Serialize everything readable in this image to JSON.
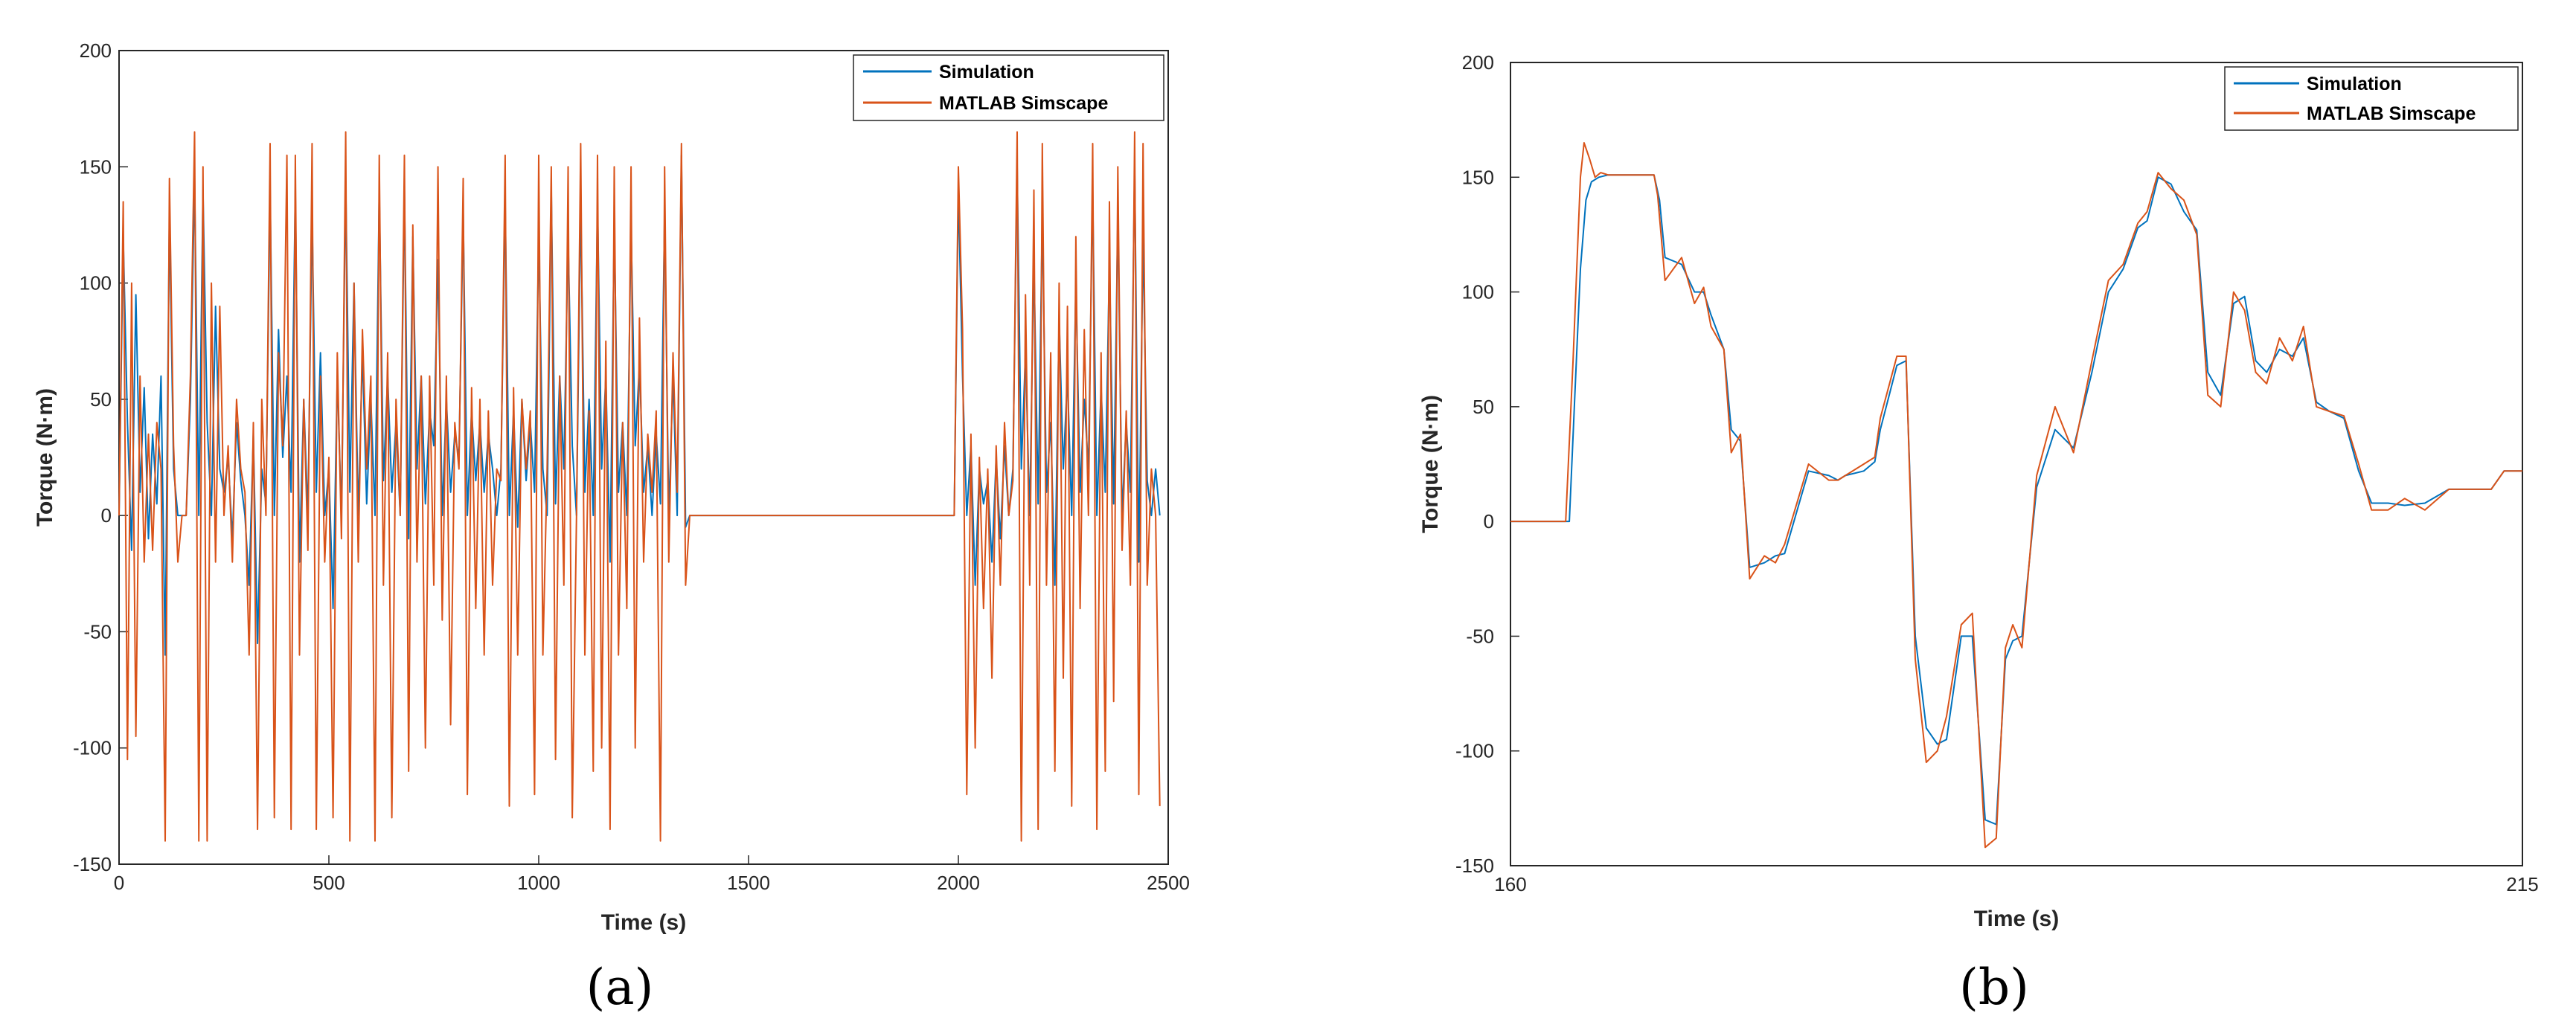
{
  "colors": {
    "simulation": "#0072BD",
    "simscape": "#D95319",
    "axis": "#262626"
  },
  "chart_data": [
    {
      "type": "line",
      "panel_label": "(a)",
      "xlabel": "Time (s)",
      "ylabel": "Torque (N·m)",
      "xlim": [
        0,
        2500
      ],
      "ylim": [
        -150,
        200
      ],
      "xticks": [
        0,
        500,
        1000,
        1500,
        2000,
        2500
      ],
      "yticks": [
        -150,
        -100,
        -50,
        0,
        50,
        100,
        150,
        200
      ],
      "legend_position": "top-right",
      "series": [
        {
          "name": "Simulation",
          "x": [
            0,
            10,
            20,
            30,
            40,
            50,
            60,
            70,
            80,
            90,
            100,
            110,
            120,
            130,
            140,
            150,
            160,
            170,
            180,
            190,
            200,
            210,
            220,
            230,
            240,
            250,
            260,
            270,
            280,
            290,
            300,
            310,
            320,
            330,
            340,
            350,
            360,
            370,
            380,
            390,
            400,
            410,
            420,
            430,
            440,
            450,
            460,
            470,
            480,
            490,
            500,
            510,
            520,
            530,
            540,
            550,
            560,
            570,
            580,
            590,
            600,
            610,
            620,
            630,
            640,
            650,
            660,
            670,
            680,
            690,
            700,
            710,
            720,
            730,
            740,
            750,
            760,
            770,
            780,
            790,
            800,
            810,
            820,
            830,
            840,
            850,
            860,
            870,
            880,
            890,
            900,
            910,
            920,
            930,
            940,
            950,
            960,
            970,
            980,
            990,
            1000,
            1010,
            1020,
            1030,
            1040,
            1050,
            1060,
            1070,
            1080,
            1090,
            1100,
            1110,
            1120,
            1130,
            1140,
            1150,
            1160,
            1170,
            1180,
            1190,
            1200,
            1210,
            1220,
            1230,
            1240,
            1250,
            1260,
            1270,
            1280,
            1290,
            1300,
            1310,
            1320,
            1330,
            1340,
            1350,
            1360,
            1370,
            1500,
            1990,
            2000,
            2010,
            2020,
            2030,
            2040,
            2050,
            2060,
            2070,
            2080,
            2090,
            2100,
            2110,
            2120,
            2130,
            2140,
            2150,
            2160,
            2170,
            2180,
            2190,
            2200,
            2210,
            2220,
            2230,
            2240,
            2250,
            2260,
            2270,
            2280,
            2290,
            2300,
            2310,
            2320,
            2330,
            2340,
            2350,
            2360,
            2370,
            2380,
            2390,
            2400,
            2410,
            2420,
            2430,
            2440,
            2450,
            2460,
            2470,
            2480
          ],
          "values": [
            0,
            120,
            40,
            -15,
            95,
            10,
            55,
            -10,
            35,
            5,
            60,
            -60,
            130,
            20,
            0,
            0,
            0,
            50,
            145,
            0,
            140,
            40,
            0,
            90,
            20,
            10,
            25,
            -10,
            40,
            15,
            0,
            -30,
            35,
            -55,
            20,
            5,
            140,
            0,
            80,
            25,
            60,
            10,
            140,
            -20,
            50,
            0,
            130,
            10,
            70,
            0,
            20,
            -40,
            60,
            0,
            145,
            10,
            100,
            0,
            70,
            5,
            50,
            0,
            140,
            15,
            60,
            10,
            40,
            0,
            140,
            -10,
            120,
            20,
            60,
            5,
            45,
            30,
            110,
            0,
            50,
            10,
            35,
            25,
            130,
            0,
            45,
            15,
            40,
            10,
            35,
            20,
            0,
            20,
            135,
            0,
            45,
            -5,
            50,
            15,
            40,
            10,
            120,
            20,
            0,
            140,
            5,
            60,
            20,
            120,
            30,
            0,
            135,
            10,
            50,
            0,
            135,
            20,
            60,
            -20,
            125,
            10,
            40,
            0,
            125,
            30,
            65,
            10,
            30,
            0,
            35,
            5,
            130,
            0,
            60,
            0,
            155,
            -5,
            0,
            0,
            0,
            0,
            140,
            60,
            0,
            30,
            -30,
            20,
            5,
            15,
            -20,
            25,
            -10,
            30,
            0,
            20,
            150,
            20,
            70,
            0,
            110,
            5,
            130,
            10,
            40,
            -30,
            85,
            20,
            60,
            0,
            100,
            10,
            50,
            20,
            140,
            0,
            55,
            10,
            110,
            5,
            130,
            0,
            40,
            10,
            150,
            -20,
            120,
            15,
            0,
            20,
            0
          ]
        },
        {
          "name": "MATLAB Simscape",
          "x": [
            0,
            10,
            20,
            30,
            40,
            50,
            60,
            70,
            80,
            90,
            100,
            110,
            120,
            130,
            140,
            150,
            160,
            170,
            180,
            190,
            200,
            210,
            220,
            230,
            240,
            250,
            260,
            270,
            280,
            290,
            300,
            310,
            320,
            330,
            340,
            350,
            360,
            370,
            380,
            390,
            400,
            410,
            420,
            430,
            440,
            450,
            460,
            470,
            480,
            490,
            500,
            510,
            520,
            530,
            540,
            550,
            560,
            570,
            580,
            590,
            600,
            610,
            620,
            630,
            640,
            650,
            660,
            670,
            680,
            690,
            700,
            710,
            720,
            730,
            740,
            750,
            760,
            770,
            780,
            790,
            800,
            810,
            820,
            830,
            840,
            850,
            860,
            870,
            880,
            890,
            900,
            910,
            920,
            930,
            940,
            950,
            960,
            970,
            980,
            990,
            1000,
            1010,
            1020,
            1030,
            1040,
            1050,
            1060,
            1070,
            1080,
            1090,
            1100,
            1110,
            1120,
            1130,
            1140,
            1150,
            1160,
            1170,
            1180,
            1190,
            1200,
            1210,
            1220,
            1230,
            1240,
            1250,
            1260,
            1270,
            1280,
            1290,
            1300,
            1310,
            1320,
            1330,
            1340,
            1350,
            1360,
            1370,
            1500,
            1990,
            2000,
            2010,
            2020,
            2030,
            2040,
            2050,
            2060,
            2070,
            2080,
            2090,
            2100,
            2110,
            2120,
            2130,
            2140,
            2150,
            2160,
            2170,
            2180,
            2190,
            2200,
            2210,
            2220,
            2230,
            2240,
            2250,
            2260,
            2270,
            2280,
            2290,
            2300,
            2310,
            2320,
            2330,
            2340,
            2350,
            2360,
            2370,
            2380,
            2390,
            2400,
            2410,
            2420,
            2430,
            2440,
            2450,
            2460,
            2470,
            2480
          ],
          "values": [
            0,
            135,
            -105,
            100,
            -95,
            60,
            -20,
            35,
            -15,
            40,
            20,
            -140,
            145,
            30,
            -20,
            0,
            0,
            60,
            165,
            -140,
            150,
            -140,
            100,
            -20,
            90,
            0,
            30,
            -20,
            50,
            20,
            10,
            -60,
            40,
            -135,
            50,
            0,
            160,
            -130,
            70,
            30,
            155,
            -135,
            155,
            -60,
            50,
            -15,
            160,
            -135,
            60,
            -20,
            25,
            -130,
            70,
            -10,
            165,
            -140,
            100,
            -20,
            80,
            20,
            60,
            -140,
            155,
            -30,
            70,
            -130,
            50,
            0,
            155,
            -110,
            125,
            -20,
            60,
            -100,
            60,
            -30,
            150,
            -45,
            60,
            -90,
            40,
            20,
            145,
            -120,
            55,
            -40,
            50,
            -60,
            45,
            -30,
            20,
            15,
            155,
            -125,
            55,
            -60,
            50,
            20,
            45,
            -120,
            155,
            -60,
            20,
            150,
            -105,
            60,
            -30,
            150,
            -130,
            0,
            160,
            -60,
            45,
            -110,
            155,
            -100,
            75,
            -135,
            150,
            -60,
            40,
            -40,
            150,
            -100,
            85,
            -20,
            35,
            10,
            45,
            -140,
            150,
            -20,
            70,
            10,
            160,
            -30,
            0,
            0,
            0,
            0,
            150,
            80,
            -120,
            35,
            -100,
            25,
            -40,
            20,
            -70,
            30,
            -30,
            40,
            0,
            15,
            165,
            -140,
            95,
            -30,
            140,
            -135,
            160,
            -30,
            70,
            -110,
            100,
            -70,
            90,
            -125,
            120,
            -40,
            80,
            0,
            160,
            -135,
            70,
            -110,
            135,
            -80,
            150,
            -15,
            45,
            -30,
            165,
            -120,
            160,
            -30,
            20,
            0,
            -125
          ]
        }
      ]
    },
    {
      "type": "line",
      "panel_label": "(b)",
      "xlabel": "Time (s)",
      "ylabel": "Torque (N·m)",
      "xlim": [
        160,
        215
      ],
      "ylim": [
        -150,
        200
      ],
      "xticks": [
        160,
        215
      ],
      "yticks": [
        -150,
        -100,
        -50,
        0,
        50,
        100,
        150,
        200
      ],
      "legend_position": "top-right",
      "series": [
        {
          "name": "Simulation",
          "x": [
            160,
            163.2,
            163.5,
            163.8,
            164.1,
            164.4,
            164.8,
            165.3,
            166.5,
            167.8,
            168.1,
            168.4,
            169.3,
            170.0,
            170.5,
            170.9,
            171.6,
            172.0,
            172.5,
            173.0,
            173.8,
            174.4,
            174.9,
            176.2,
            177.3,
            177.8,
            178.2,
            179.2,
            179.8,
            180.1,
            181.0,
            181.5,
            182.0,
            182.6,
            183.2,
            183.7,
            184.5,
            185.1,
            185.8,
            186.4,
            186.9,
            187.3,
            187.8,
            188.6,
            189.6,
            190.6,
            191.6,
            192.5,
            193.3,
            194.1,
            194.6,
            195.2,
            195.9,
            196.6,
            197.3,
            197.9,
            198.6,
            199.3,
            199.9,
            200.5,
            201.1,
            201.8,
            202.5,
            203.1,
            203.8,
            204.5,
            205.3,
            206.1,
            206.8,
            207.7,
            208.6,
            209.7,
            211.0,
            212.9,
            213.3,
            214.0,
            215.0
          ],
          "values": [
            0,
            0,
            55,
            110,
            140,
            148,
            150,
            151,
            151,
            151,
            140,
            115,
            112,
            100,
            100,
            90,
            75,
            40,
            35,
            -20,
            -18,
            -15,
            -14,
            22,
            20,
            18,
            20,
            22,
            26,
            40,
            68,
            70,
            -50,
            -90,
            -97,
            -95,
            -50,
            -50,
            -130,
            -132,
            -60,
            -52,
            -50,
            15,
            40,
            32,
            65,
            100,
            110,
            128,
            131,
            150,
            147,
            135,
            127,
            65,
            55,
            95,
            98,
            70,
            65,
            75,
            72,
            80,
            52,
            48,
            45,
            22,
            8,
            8,
            7,
            8,
            14,
            14,
            14,
            22,
            22
          ]
        },
        {
          "name": "MATLAB Simscape",
          "x": [
            160,
            163.0,
            163.4,
            163.8,
            164.0,
            164.3,
            164.6,
            164.9,
            165.3,
            166.5,
            167.8,
            168.0,
            168.4,
            169.3,
            170.0,
            170.5,
            170.9,
            171.6,
            172.0,
            172.5,
            173.0,
            173.8,
            174.4,
            174.9,
            176.2,
            177.3,
            177.8,
            178.2,
            179.2,
            179.8,
            180.1,
            181.0,
            181.5,
            182.0,
            182.6,
            183.2,
            183.7,
            184.5,
            185.1,
            185.8,
            186.4,
            186.9,
            187.3,
            187.8,
            188.6,
            189.6,
            190.6,
            191.6,
            192.5,
            193.3,
            194.1,
            194.6,
            195.2,
            195.9,
            196.6,
            197.3,
            197.9,
            198.6,
            199.3,
            199.9,
            200.5,
            201.1,
            201.8,
            202.5,
            203.1,
            203.8,
            204.5,
            205.3,
            206.1,
            206.8,
            207.7,
            208.6,
            209.7,
            211.0,
            212.9,
            213.3,
            214.0,
            215.0
          ],
          "values": [
            0,
            0,
            70,
            150,
            165,
            158,
            150,
            152,
            151,
            151,
            151,
            142,
            105,
            115,
            95,
            102,
            85,
            75,
            30,
            38,
            -25,
            -15,
            -18,
            -10,
            25,
            18,
            18,
            20,
            25,
            28,
            45,
            72,
            72,
            -60,
            -105,
            -100,
            -85,
            -45,
            -40,
            -142,
            -138,
            -55,
            -45,
            -55,
            20,
            50,
            30,
            70,
            105,
            112,
            130,
            135,
            152,
            145,
            140,
            125,
            55,
            50,
            100,
            92,
            65,
            60,
            80,
            70,
            85,
            50,
            48,
            46,
            25,
            5,
            5,
            10,
            5,
            14,
            14,
            14,
            22,
            22
          ]
        }
      ]
    }
  ]
}
